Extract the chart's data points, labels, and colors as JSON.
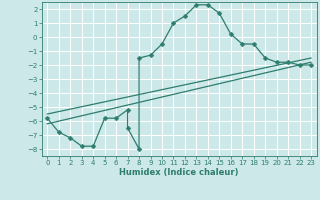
{
  "title": "",
  "xlabel": "Humidex (Indice chaleur)",
  "xlim": [
    -0.5,
    23.5
  ],
  "ylim": [
    -8.5,
    2.5
  ],
  "xticks": [
    0,
    1,
    2,
    3,
    4,
    5,
    6,
    7,
    8,
    9,
    10,
    11,
    12,
    13,
    14,
    15,
    16,
    17,
    18,
    19,
    20,
    21,
    22,
    23
  ],
  "yticks": [
    2,
    1,
    0,
    -1,
    -2,
    -3,
    -4,
    -5,
    -6,
    -7,
    -8
  ],
  "background_color": "#cce8e8",
  "line_color": "#2e7d6e",
  "grid_color": "#ffffff",
  "main_x": [
    0,
    1,
    2,
    3,
    4,
    5,
    6,
    7,
    7,
    8,
    8,
    9,
    10,
    11,
    12,
    13,
    14,
    15,
    16,
    17,
    18,
    19,
    20,
    21,
    22,
    23
  ],
  "main_y": [
    -5.8,
    -6.8,
    -7.2,
    -7.8,
    -7.8,
    -5.8,
    -5.8,
    -5.2,
    -6.5,
    -8.0,
    -1.5,
    -1.3,
    -0.5,
    1.0,
    1.5,
    2.3,
    2.3,
    1.7,
    0.2,
    -0.5,
    -0.5,
    -1.5,
    -1.8,
    -1.8,
    -2.0,
    -2.0
  ],
  "line1_x": [
    0,
    23
  ],
  "line1_y": [
    -6.2,
    -1.8
  ],
  "line2_x": [
    0,
    23
  ],
  "line2_y": [
    -5.5,
    -1.5
  ],
  "markersize": 2.5,
  "linewidth": 0.9
}
